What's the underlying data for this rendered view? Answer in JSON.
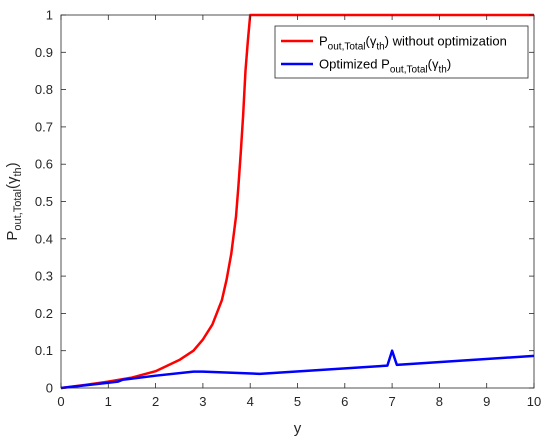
{
  "chart_data": {
    "type": "line",
    "xlabel": "y",
    "ylabel": {
      "main": "P",
      "sub": "out,Total",
      "open": "(",
      "greek": "γ",
      "greek_sub": "th",
      "close": ")"
    },
    "xlim": [
      0,
      10
    ],
    "ylim": [
      0,
      1
    ],
    "x_ticks": [
      0,
      1,
      2,
      3,
      4,
      5,
      6,
      7,
      8,
      9,
      10
    ],
    "y_ticks": [
      0,
      0.1,
      0.2,
      0.3,
      0.4,
      0.5,
      0.6,
      0.7,
      0.8,
      0.9,
      1
    ],
    "grid": false,
    "legend_position": "top-right",
    "series": [
      {
        "name": {
          "main": "P",
          "sub": "out,Total",
          "open": "(",
          "greek": "γ",
          "greek_sub": "th",
          "close": ")",
          "suffix": " without optimization",
          "prefix": ""
        },
        "color": "#ff0000",
        "x": [
          0,
          0.5,
          1.0,
          1.5,
          2.0,
          2.5,
          2.8,
          3.0,
          3.2,
          3.4,
          3.5,
          3.6,
          3.7,
          3.75,
          3.8,
          3.85,
          3.9,
          3.95,
          4.0,
          10
        ],
        "y": [
          0,
          0.008,
          0.017,
          0.028,
          0.045,
          0.075,
          0.1,
          0.13,
          0.17,
          0.235,
          0.29,
          0.36,
          0.46,
          0.54,
          0.63,
          0.73,
          0.85,
          0.93,
          1.0,
          1.0
        ]
      },
      {
        "name": {
          "main": "P",
          "sub": "out,Total",
          "open": "(",
          "greek": "γ",
          "greek_sub": "th",
          "close": ")",
          "suffix": "",
          "prefix": "Optimized "
        },
        "color": "#0000ff",
        "x": [
          0,
          0.5,
          1.0,
          1.2,
          1.3,
          2.0,
          2.8,
          3.0,
          4.2,
          6.9,
          7.0,
          7.1,
          10
        ],
        "y": [
          0,
          0.007,
          0.014,
          0.017,
          0.022,
          0.033,
          0.044,
          0.044,
          0.038,
          0.06,
          0.1,
          0.062,
          0.086
        ]
      }
    ]
  }
}
